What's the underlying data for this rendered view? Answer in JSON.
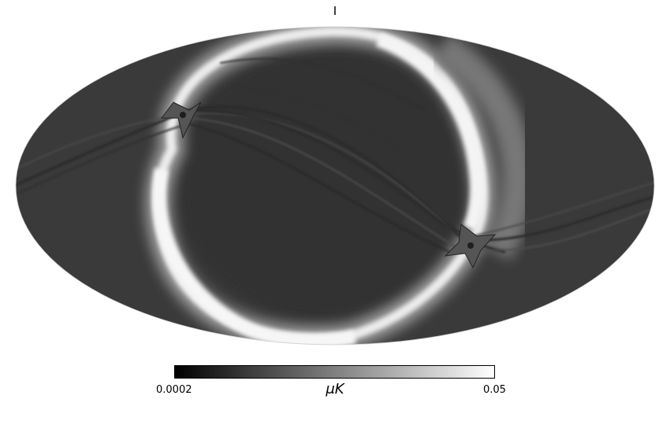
{
  "map": {
    "title": "I",
    "projection": "mollweide",
    "colormap": "grayscale"
  },
  "colorbar": {
    "min_label": "0.0002",
    "max_label": "0.05",
    "unit_label": "μK",
    "min_color": "#000000",
    "max_color": "#ffffff"
  }
}
